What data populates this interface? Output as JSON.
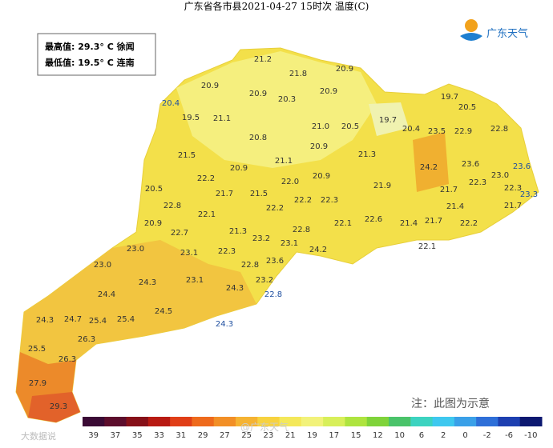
{
  "header": {
    "title": "广东省各市县2021-04-27 15时次 温度(C)",
    "logo": "广东天气"
  },
  "summary": {
    "max": "最高值: 29.3° C 徐闻",
    "min": "最低值: 19.5° C 连南"
  },
  "labels": [
    "21.2",
    "21.8",
    "20.9",
    "20.9",
    "20.9",
    "20.3",
    "20.9",
    "20.4",
    "19.7",
    "20.5",
    "19.5",
    "21.1",
    "21.0",
    "20.5",
    "19.7",
    "20.4",
    "23.5",
    "22.9",
    "22.8",
    "20.8",
    "20.9",
    "21.5",
    "21.1",
    "21.3",
    "24.2",
    "23.6",
    "23.6",
    "20.9",
    "23.0",
    "22.2",
    "22.0",
    "20.9",
    "21.9",
    "22.3",
    "22.3",
    "23.3",
    "20.5",
    "21.7",
    "21.5",
    "21.7",
    "22.8",
    "22.2",
    "22.2",
    "22.3",
    "21.4",
    "21.7",
    "22.1",
    "22.6",
    "21.4",
    "21.7",
    "22.2",
    "20.9",
    "22.1",
    "22.7",
    "21.3",
    "22.8",
    "23.2",
    "23.1",
    "22.1",
    "23.0",
    "23.1",
    "22.3",
    "24.2",
    "23.6",
    "22.8",
    "23.0",
    "23.1",
    "24.3",
    "23.2",
    "24.3",
    "22.8",
    "24.4",
    "24.5",
    "24.3",
    "24.7",
    "25.4",
    "25.4",
    "24.3",
    "26.3",
    "25.5",
    "26.3",
    "27.9",
    "29.3"
  ],
  "legend": [
    {
      "label": "39",
      "color": "#3b0b35"
    },
    {
      "label": "37",
      "color": "#5c0d2c"
    },
    {
      "label": "35",
      "color": "#861018"
    },
    {
      "label": "33",
      "color": "#b81a12"
    },
    {
      "label": "31",
      "color": "#e03e17"
    },
    {
      "label": "29",
      "color": "#ee6a1c"
    },
    {
      "label": "27",
      "color": "#f28f26"
    },
    {
      "label": "25",
      "color": "#f5b332"
    },
    {
      "label": "23",
      "color": "#f7d23f"
    },
    {
      "label": "21",
      "color": "#f4e85a"
    },
    {
      "label": "19",
      "color": "#f2f27a"
    },
    {
      "label": "17",
      "color": "#d8ef5a"
    },
    {
      "label": "15",
      "color": "#aee43f"
    },
    {
      "label": "12",
      "color": "#7fd33a"
    },
    {
      "label": "10",
      "color": "#4ac36a"
    },
    {
      "label": "6",
      "color": "#3cd3c0"
    },
    {
      "label": "2",
      "color": "#3ec8ef"
    },
    {
      "label": "0",
      "color": "#3aa0e8"
    },
    {
      "label": "-2",
      "color": "#2e6fd8"
    },
    {
      "label": "-6",
      "color": "#1d3fb0"
    },
    {
      "label": "-10",
      "color": "#0c1870"
    }
  ],
  "note": "注：此图为示意",
  "watermark": [
    "大数据说",
    "@广东天气"
  ]
}
